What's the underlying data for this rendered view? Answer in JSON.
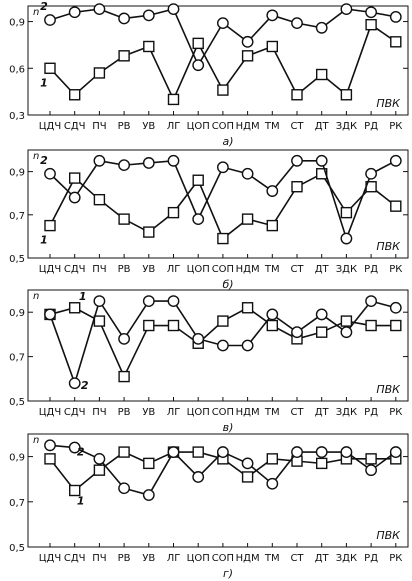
{
  "chart_data": [
    {
      "type": "line",
      "panel_label": "а)",
      "region_label": "ПВК",
      "ylabel": "n",
      "categories": [
        "ЦДЧ",
        "СДЧ",
        "ПЧ",
        "РВ",
        "УВ",
        "ЛГ",
        "ЦОП",
        "СОП",
        "НДМ",
        "ТМ",
        "СТ",
        "ДТ",
        "ЗДК",
        "РД",
        "РК"
      ],
      "ylim": [
        0.3,
        1.0
      ],
      "yticks": [
        0.3,
        0.6,
        0.9
      ],
      "ytick_labels": [
        "0,3",
        "0,6",
        "0,9"
      ],
      "series": [
        {
          "name": "1",
          "marker": "square",
          "values": [
            0.6,
            0.43,
            0.57,
            0.68,
            0.74,
            0.4,
            0.76,
            0.46,
            0.68,
            0.74,
            0.43,
            0.56,
            0.43,
            0.88,
            0.77
          ]
        },
        {
          "name": "2",
          "marker": "circle",
          "values": [
            0.91,
            0.96,
            0.98,
            0.92,
            0.94,
            0.98,
            0.62,
            0.89,
            0.77,
            0.94,
            0.89,
            0.86,
            0.98,
            0.96,
            0.93
          ]
        }
      ]
    },
    {
      "type": "line",
      "panel_label": "б)",
      "region_label": "ПВК",
      "ylabel": "n",
      "categories": [
        "ЦДЧ",
        "СДЧ",
        "ПЧ",
        "РВ",
        "УВ",
        "ЛГ",
        "ЦОП",
        "СОП",
        "НДМ",
        "ТМ",
        "СТ",
        "ДТ",
        "ЗДК",
        "РД",
        "РК"
      ],
      "ylim": [
        0.5,
        1.0
      ],
      "yticks": [
        0.5,
        0.7,
        0.9
      ],
      "ytick_labels": [
        "0,5",
        "0,7",
        "0,9"
      ],
      "series": [
        {
          "name": "1",
          "marker": "square",
          "values": [
            0.65,
            0.87,
            0.77,
            0.68,
            0.62,
            0.71,
            0.86,
            0.59,
            0.68,
            0.65,
            0.83,
            0.89,
            0.71,
            0.83,
            0.74
          ]
        },
        {
          "name": "2",
          "marker": "circle",
          "values": [
            0.89,
            0.78,
            0.95,
            0.93,
            0.94,
            0.95,
            0.68,
            0.92,
            0.89,
            0.81,
            0.95,
            0.95,
            0.59,
            0.89,
            0.95
          ]
        }
      ]
    },
    {
      "type": "line",
      "panel_label": "в)",
      "region_label": "ПВК",
      "ylabel": "n",
      "categories": [
        "ЦДЧ",
        "СДЧ",
        "ПЧ",
        "РВ",
        "УВ",
        "ЛГ",
        "ЦОП",
        "СОП",
        "НДМ",
        "ТМ",
        "СТ",
        "ДТ",
        "ЗДК",
        "РД",
        "РК"
      ],
      "ylim": [
        0.5,
        1.0
      ],
      "yticks": [
        0.5,
        0.7,
        0.9
      ],
      "ytick_labels": [
        "0,5",
        "0,7",
        "0,9"
      ],
      "series": [
        {
          "name": "1",
          "marker": "square",
          "values": [
            0.89,
            0.92,
            0.86,
            0.61,
            0.84,
            0.84,
            0.76,
            0.86,
            0.92,
            0.84,
            0.78,
            0.81,
            0.86,
            0.84,
            0.84
          ]
        },
        {
          "name": "2",
          "marker": "circle",
          "values": [
            0.89,
            0.58,
            0.95,
            0.78,
            0.95,
            0.95,
            0.78,
            0.75,
            0.75,
            0.89,
            0.81,
            0.89,
            0.81,
            0.95,
            0.92
          ]
        }
      ]
    },
    {
      "type": "line",
      "panel_label": "г)",
      "region_label": "ПВК",
      "ylabel": "n",
      "categories": [
        "ЦДЧ",
        "СДЧ",
        "ПЧ",
        "РВ",
        "УВ",
        "ЛГ",
        "ЦОП",
        "СОП",
        "НДМ",
        "ТМ",
        "СТ",
        "ДТ",
        "ЗДК",
        "РД",
        "РК"
      ],
      "ylim": [
        0.5,
        1.0
      ],
      "yticks": [
        0.5,
        0.7,
        0.9
      ],
      "ytick_labels": [
        "0,5",
        "0,7",
        "0,9"
      ],
      "series": [
        {
          "name": "1",
          "marker": "square",
          "values": [
            0.89,
            0.75,
            0.84,
            0.92,
            0.87,
            0.92,
            0.92,
            0.89,
            0.81,
            0.89,
            0.88,
            0.87,
            0.89,
            0.89,
            0.89
          ]
        },
        {
          "name": "2",
          "marker": "circle",
          "values": [
            0.95,
            0.94,
            0.89,
            0.76,
            0.73,
            0.92,
            0.81,
            0.92,
            0.87,
            0.78,
            0.92,
            0.92,
            0.92,
            0.84,
            0.92
          ]
        }
      ]
    }
  ]
}
